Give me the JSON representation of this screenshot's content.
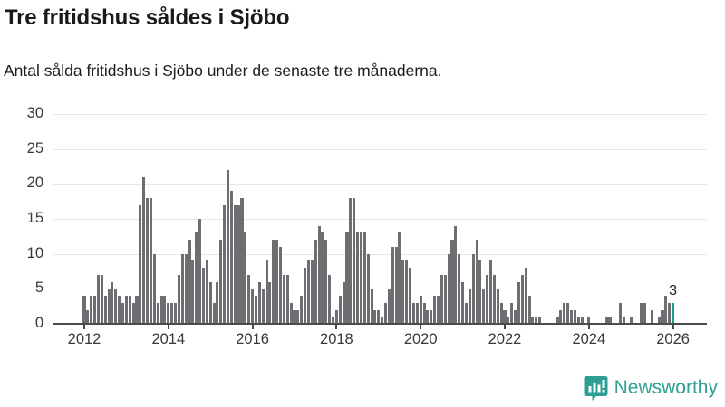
{
  "header": {
    "title": "Tre fritidshus såldes i Sjöbo",
    "subtitle": "Antal sålda fritidshus i Sjöbo under de senaste tre månaderna."
  },
  "chart_data": {
    "type": "bar",
    "title": "Tre fritidshus såldes i Sjöbo",
    "subtitle": "Antal sålda fritidshus i Sjöbo under de senaste tre månaderna.",
    "x_unit": "month",
    "x_start": "2012-01",
    "x_end": "2026-01",
    "x_tick_labels": [
      "2012",
      "2014",
      "2016",
      "2018",
      "2020",
      "2022",
      "2024",
      "2026"
    ],
    "y_ticks": [
      0,
      5,
      10,
      15,
      20,
      25,
      30
    ],
    "ylim": [
      0,
      30
    ],
    "grid": "horizontal",
    "bar_color": "#6e6e72",
    "highlight_color": "#12a096",
    "annotation": {
      "text": "3",
      "applies_to": "last-bar"
    },
    "series": [
      {
        "name": "Antal sålda fritidshus, rullande tre månader",
        "values": [
          4,
          2,
          4,
          4,
          7,
          7,
          4,
          5,
          6,
          5,
          4,
          3,
          4,
          4,
          3,
          4,
          17,
          21,
          18,
          18,
          10,
          3,
          4,
          4,
          3,
          3,
          3,
          7,
          10,
          10,
          12,
          9,
          13,
          15,
          8,
          9,
          6,
          3,
          6,
          12,
          17,
          22,
          19,
          17,
          17,
          18,
          13,
          7,
          5,
          4,
          6,
          5,
          9,
          6,
          12,
          12,
          11,
          7,
          7,
          3,
          2,
          2,
          4,
          8,
          9,
          9,
          12,
          14,
          13,
          12,
          7,
          1,
          2,
          4,
          6,
          13,
          18,
          18,
          13,
          13,
          13,
          10,
          5,
          2,
          2,
          1,
          3,
          5,
          11,
          11,
          13,
          9,
          9,
          8,
          3,
          3,
          4,
          3,
          2,
          2,
          4,
          4,
          7,
          7,
          10,
          12,
          14,
          10,
          6,
          3,
          5,
          10,
          12,
          9,
          5,
          7,
          9,
          7,
          5,
          3,
          2,
          1,
          3,
          2,
          6,
          7,
          8,
          4,
          1,
          1,
          1,
          0,
          0,
          0,
          0,
          1,
          2,
          3,
          3,
          2,
          2,
          1,
          1,
          0,
          1,
          0,
          0,
          0,
          0,
          1,
          1,
          0,
          0,
          3,
          1,
          0,
          1,
          0,
          0,
          3,
          3,
          0,
          2,
          0,
          1,
          2,
          4,
          3,
          3
        ]
      }
    ],
    "last_value": 3
  },
  "footer": {
    "brand": "Newsworthy",
    "logo_icon": "bar-chart-speech-bubble-icon",
    "brand_color": "#2e9f94"
  }
}
